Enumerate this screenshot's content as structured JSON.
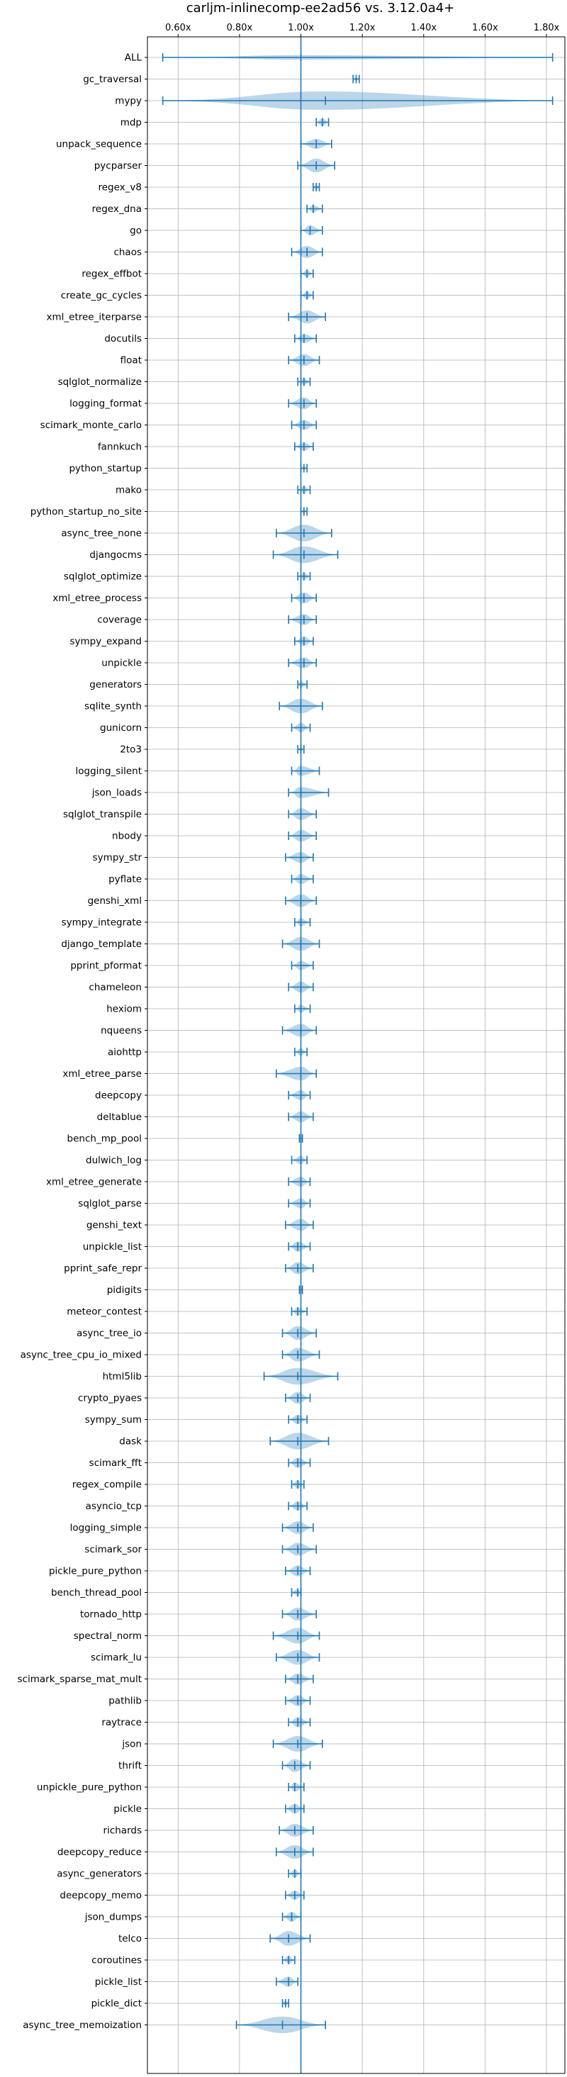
{
  "chart_data": {
    "type": "violin",
    "title": "carljm-inlinecomp-ee2ad56 vs. 3.12.0a4+",
    "xlabel": "",
    "ylabel": "",
    "orientation": "horizontal",
    "xlim": [
      0.5,
      1.86
    ],
    "xticks": [
      0.6,
      0.8,
      1.0,
      1.2,
      1.4,
      1.6,
      1.8
    ],
    "xtick_labels": [
      "0.60x",
      "0.80x",
      "1.00x",
      "1.20x",
      "1.40x",
      "1.60x",
      "1.80x"
    ],
    "xaxis_position": "top",
    "reference_line": 1.0,
    "grid": true,
    "color": "#1f77b4",
    "series": [
      {
        "label": "ALL",
        "min": 0.55,
        "max": 1.82,
        "mean": 1.0,
        "width": 0.25
      },
      {
        "label": "gc_traversal",
        "min": 1.17,
        "max": 1.19,
        "mean": 1.18,
        "width": 0.2
      },
      {
        "label": "mypy",
        "min": 0.55,
        "max": 1.82,
        "mean": 1.08,
        "width": 1.0
      },
      {
        "label": "mdp",
        "min": 1.05,
        "max": 1.09,
        "mean": 1.07,
        "width": 0.45
      },
      {
        "label": "unpack_sequence",
        "min": 1.0,
        "max": 1.1,
        "mean": 1.05,
        "width": 0.55
      },
      {
        "label": "pycparser",
        "min": 0.99,
        "max": 1.11,
        "mean": 1.05,
        "width": 0.75
      },
      {
        "label": "regex_v8",
        "min": 1.04,
        "max": 1.06,
        "mean": 1.05,
        "width": 0.3
      },
      {
        "label": "regex_dna",
        "min": 1.02,
        "max": 1.07,
        "mean": 1.04,
        "width": 0.4
      },
      {
        "label": "go",
        "min": 1.0,
        "max": 1.07,
        "mean": 1.03,
        "width": 0.55
      },
      {
        "label": "chaos",
        "min": 0.97,
        "max": 1.07,
        "mean": 1.02,
        "width": 0.65
      },
      {
        "label": "regex_effbot",
        "min": 1.0,
        "max": 1.04,
        "mean": 1.02,
        "width": 0.4
      },
      {
        "label": "create_gc_cycles",
        "min": 1.0,
        "max": 1.04,
        "mean": 1.02,
        "width": 0.45
      },
      {
        "label": "xml_etree_iterparse",
        "min": 0.96,
        "max": 1.08,
        "mean": 1.02,
        "width": 0.7
      },
      {
        "label": "docutils",
        "min": 0.98,
        "max": 1.05,
        "mean": 1.01,
        "width": 0.5
      },
      {
        "label": "float",
        "min": 0.96,
        "max": 1.06,
        "mean": 1.01,
        "width": 0.65
      },
      {
        "label": "sqlglot_normalize",
        "min": 0.99,
        "max": 1.03,
        "mean": 1.01,
        "width": 0.4
      },
      {
        "label": "logging_format",
        "min": 0.96,
        "max": 1.05,
        "mean": 1.01,
        "width": 0.65
      },
      {
        "label": "scimark_monte_carlo",
        "min": 0.97,
        "max": 1.05,
        "mean": 1.01,
        "width": 0.55
      },
      {
        "label": "fannkuch",
        "min": 0.98,
        "max": 1.04,
        "mean": 1.01,
        "width": 0.45
      },
      {
        "label": "python_startup",
        "min": 1.0,
        "max": 1.02,
        "mean": 1.01,
        "width": 0.2
      },
      {
        "label": "mako",
        "min": 0.99,
        "max": 1.03,
        "mean": 1.01,
        "width": 0.4
      },
      {
        "label": "python_startup_no_site",
        "min": 1.0,
        "max": 1.02,
        "mean": 1.01,
        "width": 0.2
      },
      {
        "label": "async_tree_none",
        "min": 0.92,
        "max": 1.1,
        "mean": 1.01,
        "width": 0.9
      },
      {
        "label": "djangocms",
        "min": 0.91,
        "max": 1.12,
        "mean": 1.01,
        "width": 0.9
      },
      {
        "label": "sqlglot_optimize",
        "min": 0.99,
        "max": 1.03,
        "mean": 1.01,
        "width": 0.4
      },
      {
        "label": "xml_etree_process",
        "min": 0.97,
        "max": 1.05,
        "mean": 1.01,
        "width": 0.6
      },
      {
        "label": "coverage",
        "min": 0.96,
        "max": 1.05,
        "mean": 1.01,
        "width": 0.6
      },
      {
        "label": "sympy_expand",
        "min": 0.98,
        "max": 1.04,
        "mean": 1.01,
        "width": 0.5
      },
      {
        "label": "unpickle",
        "min": 0.96,
        "max": 1.05,
        "mean": 1.01,
        "width": 0.6
      },
      {
        "label": "generators",
        "min": 0.99,
        "max": 1.02,
        "mean": 1.0,
        "width": 0.35
      },
      {
        "label": "sqlite_synth",
        "min": 0.93,
        "max": 1.07,
        "mean": 1.0,
        "width": 0.8
      },
      {
        "label": "gunicorn",
        "min": 0.97,
        "max": 1.03,
        "mean": 1.0,
        "width": 0.5
      },
      {
        "label": "2to3",
        "min": 0.99,
        "max": 1.01,
        "mean": 1.0,
        "width": 0.25
      },
      {
        "label": "logging_silent",
        "min": 0.97,
        "max": 1.06,
        "mean": 1.0,
        "width": 0.55
      },
      {
        "label": "json_loads",
        "min": 0.96,
        "max": 1.09,
        "mean": 1.0,
        "width": 0.6
      },
      {
        "label": "sqlglot_transpile",
        "min": 0.96,
        "max": 1.05,
        "mean": 1.0,
        "width": 0.65
      },
      {
        "label": "nbody",
        "min": 0.96,
        "max": 1.05,
        "mean": 1.0,
        "width": 0.65
      },
      {
        "label": "sympy_str",
        "min": 0.95,
        "max": 1.04,
        "mean": 1.0,
        "width": 0.6
      },
      {
        "label": "pyflate",
        "min": 0.97,
        "max": 1.04,
        "mean": 1.0,
        "width": 0.55
      },
      {
        "label": "genshi_xml",
        "min": 0.95,
        "max": 1.05,
        "mean": 1.0,
        "width": 0.7
      },
      {
        "label": "sympy_integrate",
        "min": 0.98,
        "max": 1.03,
        "mean": 1.0,
        "width": 0.45
      },
      {
        "label": "django_template",
        "min": 0.94,
        "max": 1.06,
        "mean": 1.0,
        "width": 0.75
      },
      {
        "label": "pprint_pformat",
        "min": 0.97,
        "max": 1.04,
        "mean": 1.0,
        "width": 0.5
      },
      {
        "label": "chameleon",
        "min": 0.96,
        "max": 1.04,
        "mean": 1.0,
        "width": 0.6
      },
      {
        "label": "hexiom",
        "min": 0.98,
        "max": 1.03,
        "mean": 1.0,
        "width": 0.4
      },
      {
        "label": "nqueens",
        "min": 0.94,
        "max": 1.05,
        "mean": 1.0,
        "width": 0.7
      },
      {
        "label": "aiohttp",
        "min": 0.98,
        "max": 1.02,
        "mean": 1.0,
        "width": 0.4
      },
      {
        "label": "xml_etree_parse",
        "min": 0.92,
        "max": 1.05,
        "mean": 1.0,
        "width": 0.75
      },
      {
        "label": "deepcopy",
        "min": 0.96,
        "max": 1.03,
        "mean": 1.0,
        "width": 0.55
      },
      {
        "label": "deltablue",
        "min": 0.96,
        "max": 1.04,
        "mean": 1.0,
        "width": 0.6
      },
      {
        "label": "bench_mp_pool",
        "min": 0.995,
        "max": 1.005,
        "mean": 1.0,
        "width": 0.15
      },
      {
        "label": "dulwich_log",
        "min": 0.97,
        "max": 1.02,
        "mean": 1.0,
        "width": 0.45
      },
      {
        "label": "xml_etree_generate",
        "min": 0.96,
        "max": 1.03,
        "mean": 1.0,
        "width": 0.55
      },
      {
        "label": "sqlglot_parse",
        "min": 0.96,
        "max": 1.03,
        "mean": 1.0,
        "width": 0.55
      },
      {
        "label": "genshi_text",
        "min": 0.95,
        "max": 1.04,
        "mean": 1.0,
        "width": 0.65
      },
      {
        "label": "unpickle_list",
        "min": 0.96,
        "max": 1.03,
        "mean": 0.99,
        "width": 0.55
      },
      {
        "label": "pprint_safe_repr",
        "min": 0.95,
        "max": 1.04,
        "mean": 0.99,
        "width": 0.65
      },
      {
        "label": "pidigits",
        "min": 0.995,
        "max": 1.005,
        "mean": 1.0,
        "width": 0.15
      },
      {
        "label": "meteor_contest",
        "min": 0.97,
        "max": 1.02,
        "mean": 0.99,
        "width": 0.45
      },
      {
        "label": "async_tree_io",
        "min": 0.94,
        "max": 1.05,
        "mean": 0.99,
        "width": 0.75
      },
      {
        "label": "async_tree_cpu_io_mixed",
        "min": 0.94,
        "max": 1.06,
        "mean": 0.99,
        "width": 0.75
      },
      {
        "label": "html5lib",
        "min": 0.88,
        "max": 1.12,
        "mean": 0.99,
        "width": 0.9
      },
      {
        "label": "crypto_pyaes",
        "min": 0.95,
        "max": 1.03,
        "mean": 0.99,
        "width": 0.65
      },
      {
        "label": "sympy_sum",
        "min": 0.96,
        "max": 1.02,
        "mean": 0.99,
        "width": 0.5
      },
      {
        "label": "dask",
        "min": 0.9,
        "max": 1.09,
        "mean": 0.99,
        "width": 0.9
      },
      {
        "label": "scimark_fft",
        "min": 0.96,
        "max": 1.03,
        "mean": 0.99,
        "width": 0.55
      },
      {
        "label": "regex_compile",
        "min": 0.97,
        "max": 1.01,
        "mean": 0.99,
        "width": 0.45
      },
      {
        "label": "asyncio_tcp",
        "min": 0.96,
        "max": 1.02,
        "mean": 0.99,
        "width": 0.5
      },
      {
        "label": "logging_simple",
        "min": 0.94,
        "max": 1.04,
        "mean": 0.99,
        "width": 0.7
      },
      {
        "label": "scimark_sor",
        "min": 0.94,
        "max": 1.05,
        "mean": 0.99,
        "width": 0.7
      },
      {
        "label": "pickle_pure_python",
        "min": 0.95,
        "max": 1.03,
        "mean": 0.99,
        "width": 0.6
      },
      {
        "label": "bench_thread_pool",
        "min": 0.97,
        "max": 1.0,
        "mean": 0.99,
        "width": 0.4
      },
      {
        "label": "tornado_http",
        "min": 0.94,
        "max": 1.05,
        "mean": 0.99,
        "width": 0.7
      },
      {
        "label": "spectral_norm",
        "min": 0.91,
        "max": 1.06,
        "mean": 0.99,
        "width": 0.85
      },
      {
        "label": "scimark_lu",
        "min": 0.92,
        "max": 1.06,
        "mean": 0.99,
        "width": 0.8
      },
      {
        "label": "scimark_sparse_mat_mult",
        "min": 0.95,
        "max": 1.04,
        "mean": 0.99,
        "width": 0.6
      },
      {
        "label": "pathlib",
        "min": 0.95,
        "max": 1.03,
        "mean": 0.99,
        "width": 0.6
      },
      {
        "label": "raytrace",
        "min": 0.96,
        "max": 1.03,
        "mean": 0.99,
        "width": 0.55
      },
      {
        "label": "json",
        "min": 0.91,
        "max": 1.07,
        "mean": 0.99,
        "width": 0.85
      },
      {
        "label": "thrift",
        "min": 0.94,
        "max": 1.03,
        "mean": 0.98,
        "width": 0.7
      },
      {
        "label": "unpickle_pure_python",
        "min": 0.96,
        "max": 1.01,
        "mean": 0.98,
        "width": 0.5
      },
      {
        "label": "pickle",
        "min": 0.95,
        "max": 1.01,
        "mean": 0.98,
        "width": 0.55
      },
      {
        "label": "richards",
        "min": 0.93,
        "max": 1.04,
        "mean": 0.98,
        "width": 0.7
      },
      {
        "label": "deepcopy_reduce",
        "min": 0.92,
        "max": 1.04,
        "mean": 0.98,
        "width": 0.75
      },
      {
        "label": "async_generators",
        "min": 0.96,
        "max": 1.0,
        "mean": 0.98,
        "width": 0.45
      },
      {
        "label": "deepcopy_memo",
        "min": 0.95,
        "max": 1.01,
        "mean": 0.98,
        "width": 0.5
      },
      {
        "label": "json_dumps",
        "min": 0.94,
        "max": 1.0,
        "mean": 0.97,
        "width": 0.55
      },
      {
        "label": "telco",
        "min": 0.9,
        "max": 1.03,
        "mean": 0.96,
        "width": 0.8
      },
      {
        "label": "coroutines",
        "min": 0.94,
        "max": 0.98,
        "mean": 0.96,
        "width": 0.45
      },
      {
        "label": "pickle_list",
        "min": 0.92,
        "max": 0.99,
        "mean": 0.96,
        "width": 0.55
      },
      {
        "label": "pickle_dict",
        "min": 0.94,
        "max": 0.96,
        "mean": 0.95,
        "width": 0.3
      },
      {
        "label": "async_tree_memoization",
        "min": 0.79,
        "max": 1.08,
        "mean": 0.94,
        "width": 0.9
      }
    ]
  }
}
